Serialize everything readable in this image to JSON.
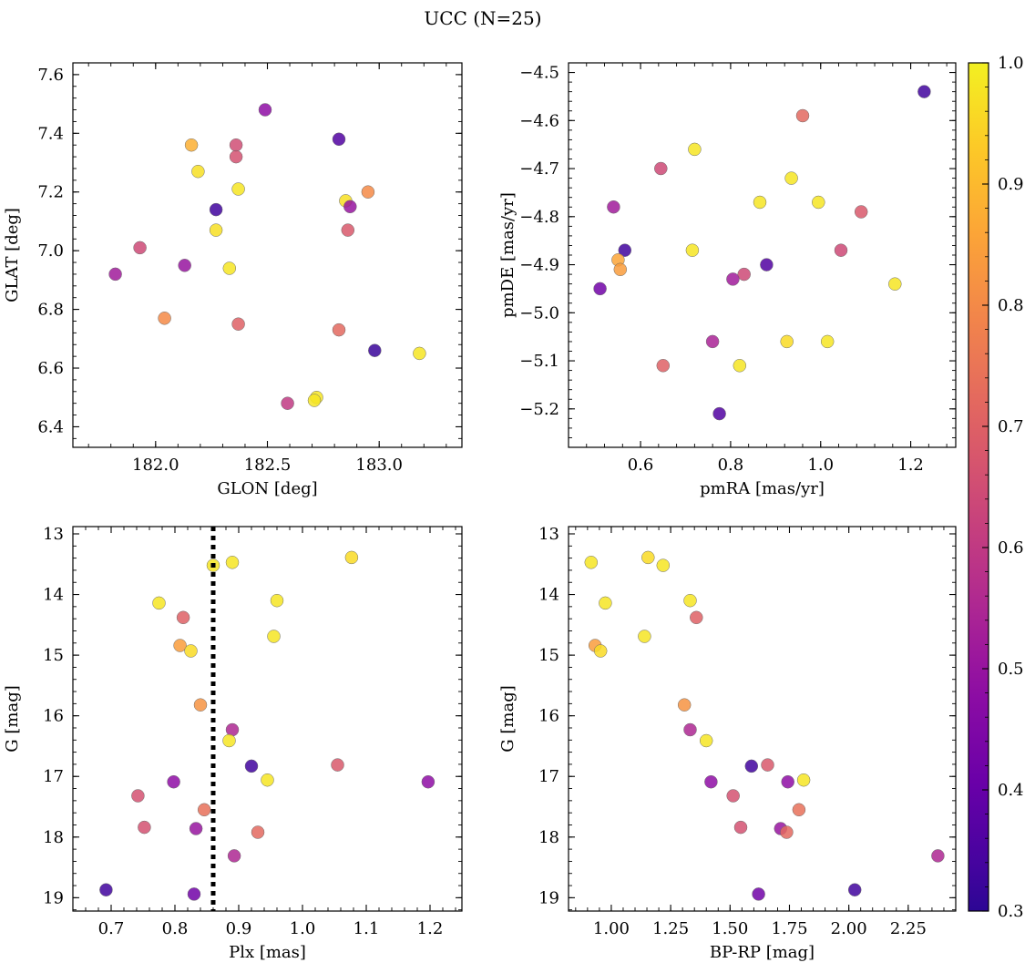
{
  "figure": {
    "title": "UCC (N=25)"
  },
  "colorbar": {
    "cmap": "plasma",
    "range": [
      0.3,
      1.0
    ],
    "ticks": [
      0.3,
      0.4,
      0.5,
      0.6,
      0.7,
      0.8,
      0.9,
      1.0
    ],
    "tick_labels": [
      "0.3",
      "0.4",
      "0.5",
      "0.6",
      "0.7",
      "0.8",
      "0.9",
      "1.0"
    ]
  },
  "chart_data": [
    {
      "type": "scatter",
      "id": "glon-glat",
      "xlabel": "GLON [deg]",
      "ylabel": "GLAT [deg]",
      "xlim": [
        181.63,
        183.37
      ],
      "ylim": [
        6.33,
        7.64
      ],
      "xticks": [
        182.0,
        182.5,
        183.0
      ],
      "xtick_labels": [
        "182.0",
        "182.5",
        "183.0"
      ],
      "yticks": [
        6.4,
        6.6,
        6.8,
        7.0,
        7.2,
        7.4,
        7.6
      ],
      "ytick_labels": [
        "6.4",
        "6.6",
        "6.8",
        "7.0",
        "7.2",
        "7.4",
        "7.6"
      ],
      "x": [
        182.49,
        182.82,
        182.16,
        182.36,
        182.36,
        182.19,
        182.37,
        182.95,
        182.85,
        182.87,
        182.27,
        182.27,
        182.86,
        181.93,
        182.13,
        182.33,
        181.82,
        182.04,
        182.37,
        182.82,
        182.98,
        183.18,
        182.72,
        182.71,
        182.59
      ],
      "y": [
        7.48,
        7.38,
        7.36,
        7.36,
        7.32,
        7.27,
        7.21,
        7.2,
        7.17,
        7.15,
        7.14,
        7.07,
        7.07,
        7.01,
        6.95,
        6.94,
        6.92,
        6.77,
        6.75,
        6.73,
        6.66,
        6.65,
        6.5,
        6.49,
        6.48
      ],
      "c": [
        0.48,
        0.36,
        0.88,
        0.65,
        0.66,
        0.97,
        0.98,
        0.8,
        0.97,
        0.5,
        0.33,
        0.97,
        0.68,
        0.64,
        0.5,
        0.98,
        0.52,
        0.8,
        0.7,
        0.72,
        0.32,
        0.98,
        0.98,
        0.98,
        0.6
      ]
    },
    {
      "type": "scatter",
      "id": "pm",
      "xlabel": "pmRA [mas/yr]",
      "ylabel": "pmDE [mas/yr]",
      "xlim": [
        0.44,
        1.3
      ],
      "ylim": [
        -5.28,
        -4.48
      ],
      "xticks": [
        0.6,
        0.8,
        1.0,
        1.2
      ],
      "xtick_labels": [
        "0.6",
        "0.8",
        "1.0",
        "1.2"
      ],
      "yticks": [
        -5.2,
        -5.1,
        -5.0,
        -4.9,
        -4.8,
        -4.7,
        -4.6,
        -4.5
      ],
      "ytick_labels": [
        "−5.2",
        "−5.1",
        "−5.0",
        "−4.9",
        "−4.8",
        "−4.7",
        "−4.6",
        "−4.5"
      ],
      "x": [
        1.23,
        0.96,
        0.72,
        0.645,
        0.935,
        0.865,
        0.995,
        1.09,
        0.54,
        0.565,
        0.715,
        1.045,
        0.55,
        0.88,
        0.555,
        0.83,
        0.805,
        1.165,
        0.51,
        0.76,
        0.925,
        1.015,
        0.65,
        0.82,
        0.775
      ],
      "y": [
        -4.54,
        -4.59,
        -4.66,
        -4.7,
        -4.72,
        -4.77,
        -4.77,
        -4.79,
        -4.78,
        -4.87,
        -4.87,
        -4.87,
        -4.89,
        -4.9,
        -4.91,
        -4.92,
        -4.93,
        -4.94,
        -4.95,
        -5.06,
        -5.06,
        -5.06,
        -5.11,
        -5.11,
        -5.21
      ],
      "c": [
        0.33,
        0.72,
        0.98,
        0.64,
        0.98,
        0.98,
        0.98,
        0.68,
        0.52,
        0.33,
        0.98,
        0.64,
        0.86,
        0.36,
        0.84,
        0.64,
        0.52,
        0.98,
        0.42,
        0.54,
        0.96,
        0.98,
        0.7,
        0.98,
        0.36
      ]
    },
    {
      "type": "scatter",
      "id": "plx-g",
      "xlabel": "Plx [mas]",
      "ylabel": "G [mag]",
      "xlim": [
        0.64,
        1.25
      ],
      "ylim": [
        19.22,
        12.88
      ],
      "xticks": [
        0.7,
        0.8,
        0.9,
        1.0,
        1.1,
        1.2
      ],
      "xtick_labels": [
        "0.7",
        "0.8",
        "0.9",
        "1.0",
        "1.1",
        "1.2"
      ],
      "yticks": [
        13,
        14,
        15,
        16,
        17,
        18,
        19
      ],
      "ytick_labels": [
        "13",
        "14",
        "15",
        "16",
        "17",
        "18",
        "19"
      ],
      "vline": 0.86,
      "x": [
        1.077,
        0.89,
        0.86,
        0.96,
        0.775,
        0.955,
        0.813,
        0.808,
        0.825,
        0.84,
        0.89,
        0.885,
        0.92,
        1.055,
        0.945,
        0.798,
        1.197,
        0.742,
        0.846,
        0.752,
        0.833,
        0.93,
        0.893,
        0.692,
        0.83
      ],
      "y": [
        13.39,
        13.47,
        13.52,
        14.1,
        14.14,
        14.69,
        14.38,
        14.84,
        14.93,
        15.82,
        16.23,
        16.41,
        16.83,
        16.81,
        17.06,
        17.09,
        17.09,
        17.32,
        17.55,
        17.84,
        17.86,
        17.92,
        18.31,
        18.87,
        18.94
      ],
      "c": [
        0.96,
        0.98,
        0.98,
        0.98,
        0.98,
        0.98,
        0.7,
        0.84,
        0.96,
        0.82,
        0.55,
        0.98,
        0.33,
        0.68,
        0.98,
        0.48,
        0.48,
        0.66,
        0.74,
        0.66,
        0.5,
        0.72,
        0.55,
        0.33,
        0.42
      ]
    },
    {
      "type": "scatter",
      "id": "cmd",
      "xlabel": "BP-RP [mag]",
      "ylabel": "G [mag]",
      "xlim": [
        0.82,
        2.45
      ],
      "ylim": [
        19.22,
        12.88
      ],
      "xticks": [
        1.0,
        1.25,
        1.5,
        1.75,
        2.0,
        2.25
      ],
      "xtick_labels": [
        "1.00",
        "1.25",
        "1.50",
        "1.75",
        "2.00",
        "2.25"
      ],
      "yticks": [
        13,
        14,
        15,
        16,
        17,
        18,
        19
      ],
      "ytick_labels": [
        "13",
        "14",
        "15",
        "16",
        "17",
        "18",
        "19"
      ],
      "x": [
        1.155,
        0.915,
        1.218,
        1.332,
        0.975,
        1.14,
        1.358,
        0.932,
        0.955,
        1.308,
        1.332,
        1.4,
        1.59,
        1.658,
        1.81,
        1.42,
        1.743,
        1.513,
        1.79,
        1.545,
        1.713,
        1.738,
        2.375,
        2.025,
        1.62
      ],
      "y": [
        13.39,
        13.47,
        13.52,
        14.1,
        14.14,
        14.69,
        14.38,
        14.84,
        14.93,
        15.82,
        16.23,
        16.41,
        16.83,
        16.81,
        17.06,
        17.09,
        17.09,
        17.32,
        17.55,
        17.84,
        17.86,
        17.92,
        18.31,
        18.87,
        18.94
      ],
      "c": [
        0.96,
        0.98,
        0.98,
        0.98,
        0.98,
        0.98,
        0.7,
        0.84,
        0.96,
        0.82,
        0.55,
        0.98,
        0.33,
        0.68,
        0.98,
        0.48,
        0.48,
        0.66,
        0.74,
        0.66,
        0.5,
        0.72,
        0.55,
        0.33,
        0.42
      ]
    }
  ]
}
